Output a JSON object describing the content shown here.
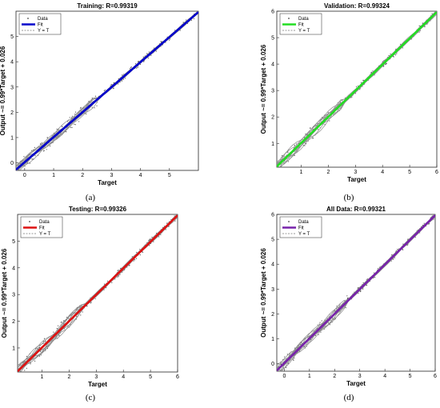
{
  "fit_color_note": "",
  "chart_data": [
    {
      "type": "scatter",
      "panel": "a",
      "caption": "(a)",
      "title": "Training: R=0.99319",
      "xlabel": "Target",
      "ylabel": "Output ~= 0.99*Target + 0.026",
      "xlim": [
        -0.3,
        6.0
      ],
      "ylim": [
        -0.3,
        6.0
      ],
      "xticks": [
        0,
        1,
        2,
        3,
        4,
        5
      ],
      "yticks": [
        0,
        1,
        2,
        3,
        4,
        5
      ],
      "legend": [
        "Data",
        "Fit",
        "Y = T"
      ],
      "legend_position": "top-left",
      "fit_color": "#0000cc",
      "fit": {
        "slope": 0.99,
        "intercept": 0.026
      },
      "data_trend": {
        "x_range": [
          -0.3,
          6.0
        ],
        "slope": 0.99,
        "intercept": 0.026
      }
    },
    {
      "type": "scatter",
      "panel": "b",
      "caption": "(b)",
      "title": "Validation: R=0.99324",
      "xlabel": "Target",
      "ylabel": "Output ~= 0.99*Target + 0.026",
      "xlim": [
        0.1,
        6.0
      ],
      "ylim": [
        0.1,
        6.0
      ],
      "xticks": [
        1,
        2,
        3,
        4,
        5,
        6
      ],
      "yticks": [
        1,
        2,
        3,
        4,
        5,
        6
      ],
      "legend": [
        "Data",
        "Fit",
        "Y = T"
      ],
      "legend_position": "top-left",
      "fit_color": "#22dd22",
      "fit": {
        "slope": 0.99,
        "intercept": 0.026
      },
      "data_trend": {
        "x_range": [
          0.1,
          6.0
        ],
        "slope": 0.99,
        "intercept": 0.026
      }
    },
    {
      "type": "scatter",
      "panel": "c",
      "caption": "(c)",
      "title": "Testing: R=0.99326",
      "xlabel": "Target",
      "ylabel": "Output ~= 0.99*Target + 0.026",
      "xlim": [
        0.1,
        6.0
      ],
      "ylim": [
        0.1,
        6.0
      ],
      "xticks": [
        1,
        2,
        3,
        4,
        5,
        6
      ],
      "yticks": [
        1,
        2,
        3,
        4,
        5
      ],
      "legend": [
        "Data",
        "Fit",
        "Y = T"
      ],
      "legend_position": "top-left",
      "fit_color": "#dd1111",
      "fit": {
        "slope": 0.99,
        "intercept": 0.026
      },
      "data_trend": {
        "x_range": [
          0.1,
          6.0
        ],
        "slope": 0.99,
        "intercept": 0.026
      }
    },
    {
      "type": "scatter",
      "panel": "d",
      "caption": "(d)",
      "title": "All Data: R=0.99321",
      "xlabel": "Target",
      "ylabel": "Output ~= 0.99*Target + 0.026",
      "xlim": [
        -0.3,
        6.0
      ],
      "ylim": [
        -0.3,
        6.0
      ],
      "xticks": [
        0,
        1,
        2,
        3,
        4,
        5,
        6
      ],
      "yticks": [
        0,
        1,
        2,
        3,
        4,
        5,
        6
      ],
      "legend": [
        "Data",
        "Fit",
        "Y = T"
      ],
      "legend_position": "top-left",
      "fit_color": "#7722aa",
      "fit": {
        "slope": 0.99,
        "intercept": 0.026
      },
      "data_trend": {
        "x_range": [
          -0.3,
          6.0
        ],
        "slope": 0.99,
        "intercept": 0.026
      }
    }
  ]
}
